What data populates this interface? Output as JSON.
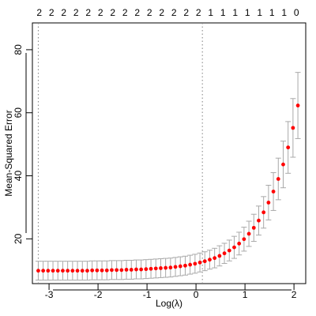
{
  "chart_data": {
    "type": "scatter",
    "title": "",
    "xlabel": "Log(λ)",
    "ylabel": "Mean-Squared Error",
    "xlim": [
      -3.34,
      2.24
    ],
    "ylim": [
      5.8,
      88.5
    ],
    "xticks": [
      -3,
      -2,
      -1,
      0,
      1,
      2
    ],
    "yticks": [
      20,
      40,
      60,
      80
    ],
    "grid": false,
    "top_axis": {
      "label_positions": [
        -3.2,
        -2.95,
        -2.7,
        -2.45,
        -2.2,
        -1.95,
        -1.7,
        -1.45,
        -1.2,
        -0.95,
        -0.7,
        -0.45,
        -0.2,
        0.05,
        0.3,
        0.55,
        0.8,
        1.05,
        1.3,
        1.55,
        1.8,
        2.05
      ],
      "labels": [
        "2",
        "2",
        "2",
        "2",
        "2",
        "2",
        "2",
        "2",
        "2",
        "2",
        "2",
        "2",
        "2",
        "2",
        "1",
        "1",
        "1",
        "1",
        "1",
        "1",
        "1",
        "0"
      ]
    },
    "vlines": [
      -3.22,
      0.13
    ],
    "point_color": "#ff0000",
    "errorbar_color": "#a9a9a9",
    "series": [
      {
        "x": [
          -3.22,
          -3.12,
          -3.02,
          -2.92,
          -2.82,
          -2.72,
          -2.62,
          -2.52,
          -2.42,
          -2.32,
          -2.22,
          -2.12,
          -2.02,
          -1.92,
          -1.82,
          -1.72,
          -1.62,
          -1.52,
          -1.42,
          -1.32,
          -1.22,
          -1.12,
          -1.02,
          -0.92,
          -0.82,
          -0.72,
          -0.62,
          -0.52,
          -0.42,
          -0.32,
          -0.22,
          -0.12,
          -0.02,
          0.08,
          0.18,
          0.28,
          0.38,
          0.48,
          0.58,
          0.68,
          0.78,
          0.88,
          0.98,
          1.08,
          1.18,
          1.28,
          1.38,
          1.48,
          1.58,
          1.68,
          1.78,
          1.88,
          1.98,
          2.08
        ],
        "y": [
          9.9,
          9.9,
          9.9,
          9.9,
          9.9,
          9.9,
          9.9,
          9.9,
          9.9,
          9.9,
          9.9,
          10.0,
          10.0,
          10.0,
          10.0,
          10.1,
          10.1,
          10.1,
          10.2,
          10.2,
          10.3,
          10.3,
          10.4,
          10.5,
          10.6,
          10.7,
          10.8,
          10.9,
          11.1,
          11.3,
          11.5,
          11.8,
          12.1,
          12.5,
          12.9,
          13.4,
          13.9,
          14.6,
          15.4,
          16.3,
          17.3,
          18.5,
          19.9,
          21.6,
          23.5,
          25.8,
          28.4,
          31.5,
          35.0,
          39.0,
          43.6,
          49.0,
          55.2,
          62.3
        ],
        "err": [
          3.0,
          3.0,
          3.0,
          3.0,
          3.0,
          3.0,
          3.0,
          3.0,
          3.0,
          3.0,
          3.0,
          3.0,
          3.0,
          3.0,
          3.0,
          3.0,
          3.0,
          3.0,
          3.0,
          3.0,
          3.0,
          3.0,
          3.0,
          3.0,
          3.0,
          3.0,
          3.0,
          3.0,
          3.0,
          3.0,
          3.0,
          3.0,
          3.0,
          3.0,
          3.0,
          3.0,
          3.1,
          3.2,
          3.2,
          3.3,
          3.5,
          3.6,
          3.8,
          4.0,
          4.3,
          4.6,
          5.0,
          5.5,
          6.0,
          6.6,
          7.4,
          8.2,
          9.3,
          10.5
        ]
      }
    ]
  }
}
